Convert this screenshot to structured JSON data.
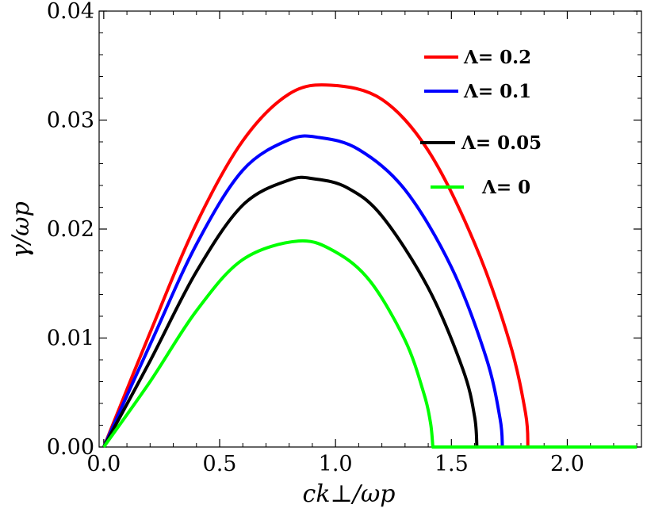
{
  "chart_data": {
    "type": "line",
    "title": "",
    "xlabel": "ck⊥/ωp",
    "ylabel": "γ/ωp",
    "xlim": [
      -0.02,
      2.32
    ],
    "ylim": [
      0.0,
      0.04
    ],
    "x_ticks": [
      "0.0",
      "0.5",
      "1.0",
      "1.5",
      "2.0"
    ],
    "x_tick_values": [
      0.0,
      0.5,
      1.0,
      1.5,
      2.0
    ],
    "y_ticks": [
      "0.00",
      "0.01",
      "0.02",
      "0.03",
      "0.04"
    ],
    "y_tick_values": [
      0.0,
      0.01,
      0.02,
      0.03,
      0.04
    ],
    "grid": false,
    "legend_position": "top-right",
    "series": [
      {
        "name": "Λ= 0.2",
        "color": "#ff0000",
        "x": [
          0.0,
          0.2,
          0.4,
          0.6,
          0.8,
          0.98,
          1.2,
          1.4,
          1.6,
          1.75,
          1.82,
          1.83,
          2.3
        ],
        "y": [
          0.0,
          0.0105,
          0.0205,
          0.0281,
          0.0324,
          0.0332,
          0.0319,
          0.0272,
          0.0187,
          0.0097,
          0.0031,
          0.0,
          0.0
        ]
      },
      {
        "name": "Λ= 0.1",
        "color": "#0000ff",
        "x": [
          0.0,
          0.2,
          0.4,
          0.6,
          0.8,
          0.93,
          1.1,
          1.3,
          1.5,
          1.65,
          1.71,
          1.72,
          2.3
        ],
        "y": [
          0.0,
          0.0094,
          0.0186,
          0.0254,
          0.0282,
          0.0284,
          0.0273,
          0.0236,
          0.0165,
          0.0082,
          0.0026,
          0.0,
          0.0
        ]
      },
      {
        "name": "Λ= 0.05",
        "color": "#000000",
        "x": [
          0.0,
          0.2,
          0.4,
          0.6,
          0.8,
          0.91,
          1.05,
          1.2,
          1.4,
          1.55,
          1.6,
          1.61,
          2.3
        ],
        "y": [
          0.0,
          0.0079,
          0.0161,
          0.0222,
          0.0245,
          0.0246,
          0.0238,
          0.0212,
          0.0146,
          0.0071,
          0.0028,
          0.0,
          0.0
        ]
      },
      {
        "name": "Λ= 0",
        "color": "#00ff00",
        "x": [
          0.0,
          0.2,
          0.4,
          0.6,
          0.84,
          1.0,
          1.15,
          1.3,
          1.38,
          1.41,
          1.42,
          2.3
        ],
        "y": [
          0.0,
          0.006,
          0.0125,
          0.0172,
          0.0189,
          0.0179,
          0.0152,
          0.0098,
          0.005,
          0.0022,
          0.0,
          0.0
        ]
      }
    ]
  }
}
